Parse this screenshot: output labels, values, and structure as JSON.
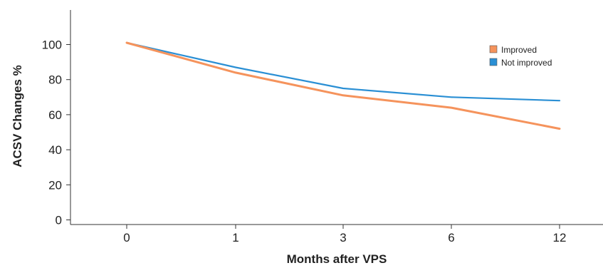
{
  "chart_data": {
    "type": "line",
    "title": "",
    "xlabel": "Months after VPS",
    "ylabel": "ACSV Changes %",
    "x_categories": [
      "0",
      "1",
      "3",
      "6",
      "12"
    ],
    "y_ticks": [
      0,
      20,
      40,
      60,
      80,
      100
    ],
    "ylim": [
      -3,
      120
    ],
    "grid": false,
    "legend_position": "top-right",
    "series": [
      {
        "name": "Improved",
        "color": "#f5935c",
        "values": [
          101,
          84,
          71,
          64,
          52
        ]
      },
      {
        "name": "Not improved",
        "color": "#2a8fd4",
        "values": [
          101,
          87,
          75,
          70,
          68
        ]
      }
    ]
  }
}
